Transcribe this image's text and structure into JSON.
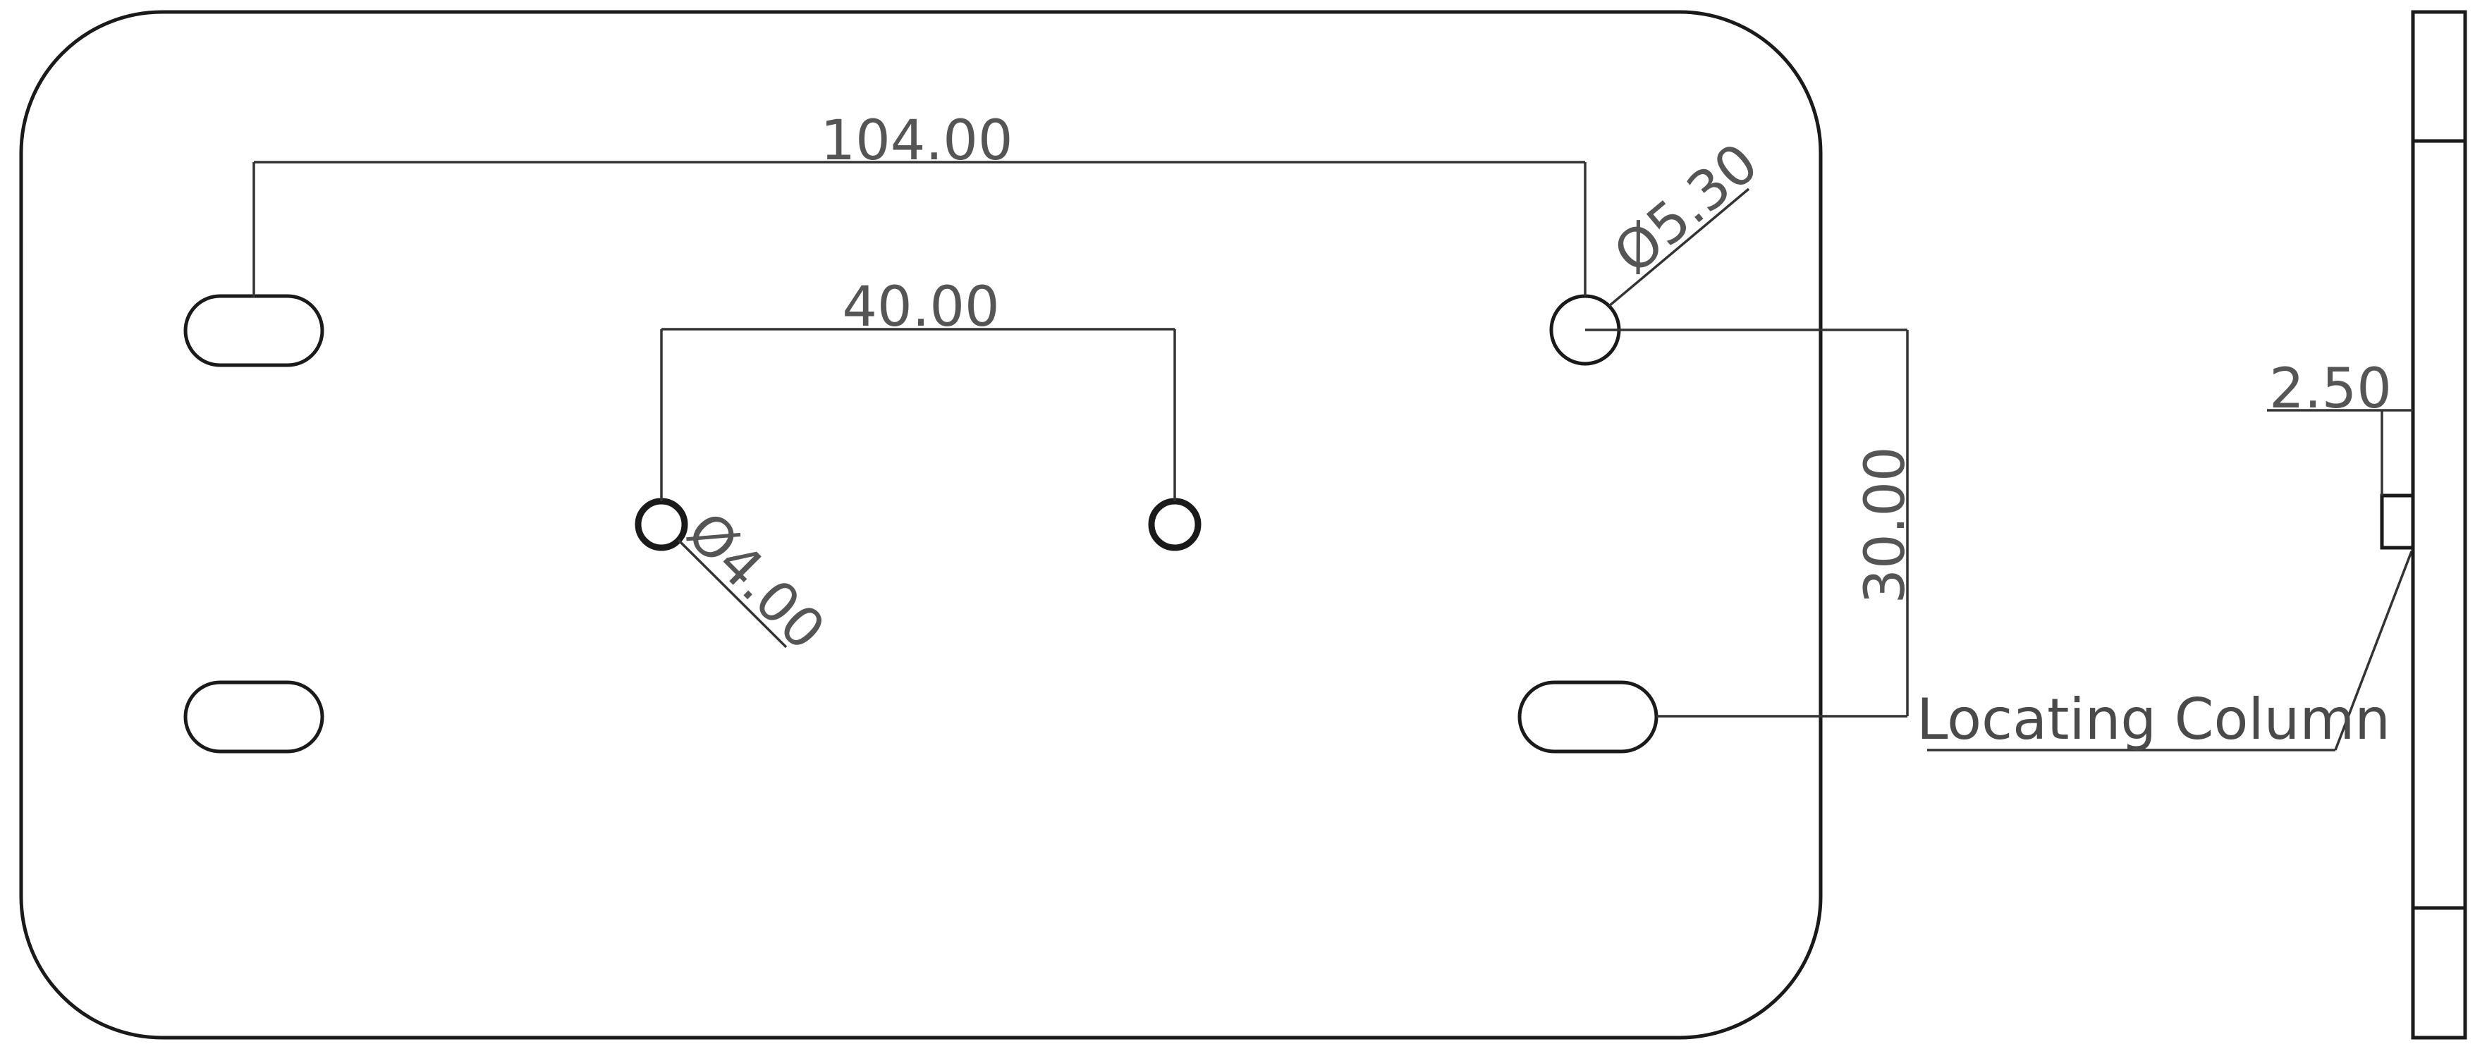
{
  "dimensions": {
    "hole_spacing_outer": "104.00",
    "hole_spacing_inner": "40.00",
    "small_hole_diameter": "Ø4.00",
    "large_hole_diameter": "Ø5.30",
    "vertical_offset": "30.00",
    "side_thickness": "2.50"
  },
  "callouts": {
    "locating_column": "Locating Column"
  }
}
